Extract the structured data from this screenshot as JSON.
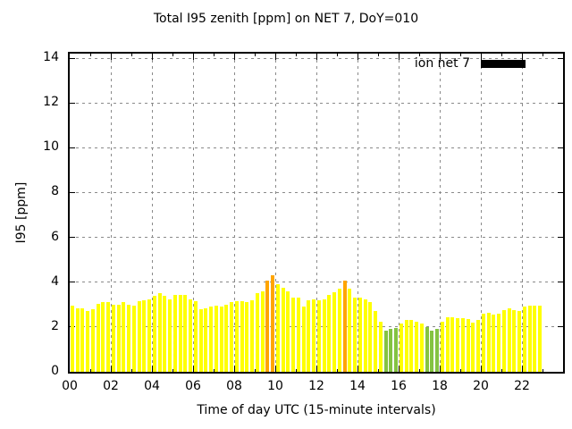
{
  "chart_data": {
    "type": "bar",
    "title": "Total I95 zenith [ppm] on NET 7, DoY=010",
    "xlabel": "Time of day UTC (15-minute intervals)",
    "ylabel": "I95 [ppm]",
    "xlim_hours": [
      0,
      24
    ],
    "ylim": [
      0,
      14
    ],
    "xtick_labels": [
      "00",
      "02",
      "04",
      "06",
      "08",
      "10",
      "12",
      "14",
      "16",
      "18",
      "20",
      "22"
    ],
    "ytick_values": [
      0,
      2,
      4,
      6,
      8,
      10,
      12,
      14
    ],
    "grid": true,
    "interval_minutes": 15,
    "legend": {
      "label": "ion net 7",
      "swatch_color": "#000000",
      "position": "top-right-inside"
    },
    "bar_colors": {
      "yellow": "#ffff00",
      "orange": "#ffa500",
      "green": "#84c342"
    },
    "series": [
      {
        "name": "ion net 7",
        "points": [
          {
            "time": "00:00",
            "value": 2.95,
            "color": "yellow"
          },
          {
            "time": "00:15",
            "value": 2.85,
            "color": "yellow"
          },
          {
            "time": "00:30",
            "value": 2.85,
            "color": "yellow"
          },
          {
            "time": "00:45",
            "value": 2.7,
            "color": "yellow"
          },
          {
            "time": "01:00",
            "value": 2.8,
            "color": "yellow"
          },
          {
            "time": "01:15",
            "value": 3.05,
            "color": "yellow"
          },
          {
            "time": "01:30",
            "value": 3.1,
            "color": "yellow"
          },
          {
            "time": "01:45",
            "value": 3.1,
            "color": "yellow"
          },
          {
            "time": "02:00",
            "value": 3.0,
            "color": "yellow"
          },
          {
            "time": "02:15",
            "value": 3.0,
            "color": "yellow"
          },
          {
            "time": "02:30",
            "value": 3.1,
            "color": "yellow"
          },
          {
            "time": "02:45",
            "value": 3.0,
            "color": "yellow"
          },
          {
            "time": "03:00",
            "value": 2.95,
            "color": "yellow"
          },
          {
            "time": "03:15",
            "value": 3.15,
            "color": "yellow"
          },
          {
            "time": "03:30",
            "value": 3.2,
            "color": "yellow"
          },
          {
            "time": "03:45",
            "value": 3.25,
            "color": "yellow"
          },
          {
            "time": "04:00",
            "value": 3.4,
            "color": "yellow"
          },
          {
            "time": "04:15",
            "value": 3.5,
            "color": "yellow"
          },
          {
            "time": "04:30",
            "value": 3.4,
            "color": "yellow"
          },
          {
            "time": "04:45",
            "value": 3.25,
            "color": "yellow"
          },
          {
            "time": "05:00",
            "value": 3.45,
            "color": "yellow"
          },
          {
            "time": "05:15",
            "value": 3.45,
            "color": "yellow"
          },
          {
            "time": "05:30",
            "value": 3.45,
            "color": "yellow"
          },
          {
            "time": "05:45",
            "value": 3.25,
            "color": "yellow"
          },
          {
            "time": "06:00",
            "value": 3.15,
            "color": "yellow"
          },
          {
            "time": "06:15",
            "value": 2.8,
            "color": "yellow"
          },
          {
            "time": "06:30",
            "value": 2.85,
            "color": "yellow"
          },
          {
            "time": "06:45",
            "value": 2.9,
            "color": "yellow"
          },
          {
            "time": "07:00",
            "value": 2.95,
            "color": "yellow"
          },
          {
            "time": "07:15",
            "value": 2.9,
            "color": "yellow"
          },
          {
            "time": "07:30",
            "value": 3.0,
            "color": "yellow"
          },
          {
            "time": "07:45",
            "value": 3.1,
            "color": "yellow"
          },
          {
            "time": "08:00",
            "value": 3.15,
            "color": "yellow"
          },
          {
            "time": "08:15",
            "value": 3.15,
            "color": "yellow"
          },
          {
            "time": "08:30",
            "value": 3.1,
            "color": "yellow"
          },
          {
            "time": "08:45",
            "value": 3.2,
            "color": "yellow"
          },
          {
            "time": "09:00",
            "value": 3.5,
            "color": "yellow"
          },
          {
            "time": "09:15",
            "value": 3.6,
            "color": "yellow"
          },
          {
            "time": "09:30",
            "value": 4.05,
            "color": "orange"
          },
          {
            "time": "09:45",
            "value": 4.3,
            "color": "orange"
          },
          {
            "time": "10:00",
            "value": 3.9,
            "color": "yellow"
          },
          {
            "time": "10:15",
            "value": 3.75,
            "color": "yellow"
          },
          {
            "time": "10:30",
            "value": 3.6,
            "color": "yellow"
          },
          {
            "time": "10:45",
            "value": 3.3,
            "color": "yellow"
          },
          {
            "time": "11:00",
            "value": 3.3,
            "color": "yellow"
          },
          {
            "time": "11:15",
            "value": 2.9,
            "color": "yellow"
          },
          {
            "time": "11:30",
            "value": 3.2,
            "color": "yellow"
          },
          {
            "time": "11:45",
            "value": 3.25,
            "color": "yellow"
          },
          {
            "time": "12:00",
            "value": 3.2,
            "color": "yellow"
          },
          {
            "time": "12:15",
            "value": 3.25,
            "color": "yellow"
          },
          {
            "time": "12:30",
            "value": 3.45,
            "color": "yellow"
          },
          {
            "time": "12:45",
            "value": 3.55,
            "color": "yellow"
          },
          {
            "time": "13:00",
            "value": 3.7,
            "color": "yellow"
          },
          {
            "time": "13:15",
            "value": 4.05,
            "color": "orange"
          },
          {
            "time": "13:30",
            "value": 3.7,
            "color": "yellow"
          },
          {
            "time": "13:45",
            "value": 3.3,
            "color": "yellow"
          },
          {
            "time": "14:00",
            "value": 3.3,
            "color": "yellow"
          },
          {
            "time": "14:15",
            "value": 3.25,
            "color": "yellow"
          },
          {
            "time": "14:30",
            "value": 3.1,
            "color": "yellow"
          },
          {
            "time": "14:45",
            "value": 2.7,
            "color": "yellow"
          },
          {
            "time": "15:00",
            "value": 2.25,
            "color": "yellow"
          },
          {
            "time": "15:15",
            "value": 1.85,
            "color": "green"
          },
          {
            "time": "15:30",
            "value": 1.9,
            "color": "green"
          },
          {
            "time": "15:45",
            "value": 1.95,
            "color": "green"
          },
          {
            "time": "16:00",
            "value": 2.15,
            "color": "yellow"
          },
          {
            "time": "16:15",
            "value": 2.3,
            "color": "yellow"
          },
          {
            "time": "16:30",
            "value": 2.3,
            "color": "yellow"
          },
          {
            "time": "16:45",
            "value": 2.25,
            "color": "yellow"
          },
          {
            "time": "17:00",
            "value": 2.15,
            "color": "yellow"
          },
          {
            "time": "17:15",
            "value": 2.0,
            "color": "green"
          },
          {
            "time": "17:30",
            "value": 1.85,
            "color": "green"
          },
          {
            "time": "17:45",
            "value": 1.9,
            "color": "green"
          },
          {
            "time": "18:00",
            "value": 2.25,
            "color": "yellow"
          },
          {
            "time": "18:15",
            "value": 2.45,
            "color": "yellow"
          },
          {
            "time": "18:30",
            "value": 2.45,
            "color": "yellow"
          },
          {
            "time": "18:45",
            "value": 2.4,
            "color": "yellow"
          },
          {
            "time": "19:00",
            "value": 2.4,
            "color": "yellow"
          },
          {
            "time": "19:15",
            "value": 2.35,
            "color": "yellow"
          },
          {
            "time": "19:30",
            "value": 2.2,
            "color": "yellow"
          },
          {
            "time": "19:45",
            "value": 2.3,
            "color": "yellow"
          },
          {
            "time": "20:00",
            "value": 2.6,
            "color": "yellow"
          },
          {
            "time": "20:15",
            "value": 2.65,
            "color": "yellow"
          },
          {
            "time": "20:30",
            "value": 2.55,
            "color": "yellow"
          },
          {
            "time": "20:45",
            "value": 2.6,
            "color": "yellow"
          },
          {
            "time": "21:00",
            "value": 2.75,
            "color": "yellow"
          },
          {
            "time": "21:15",
            "value": 2.85,
            "color": "yellow"
          },
          {
            "time": "21:30",
            "value": 2.75,
            "color": "yellow"
          },
          {
            "time": "21:45",
            "value": 2.7,
            "color": "yellow"
          },
          {
            "time": "22:00",
            "value": 2.9,
            "color": "yellow"
          },
          {
            "time": "22:15",
            "value": 2.95,
            "color": "yellow"
          },
          {
            "time": "22:30",
            "value": 2.95,
            "color": "yellow"
          },
          {
            "time": "22:45",
            "value": 2.95,
            "color": "yellow"
          }
        ]
      }
    ]
  }
}
